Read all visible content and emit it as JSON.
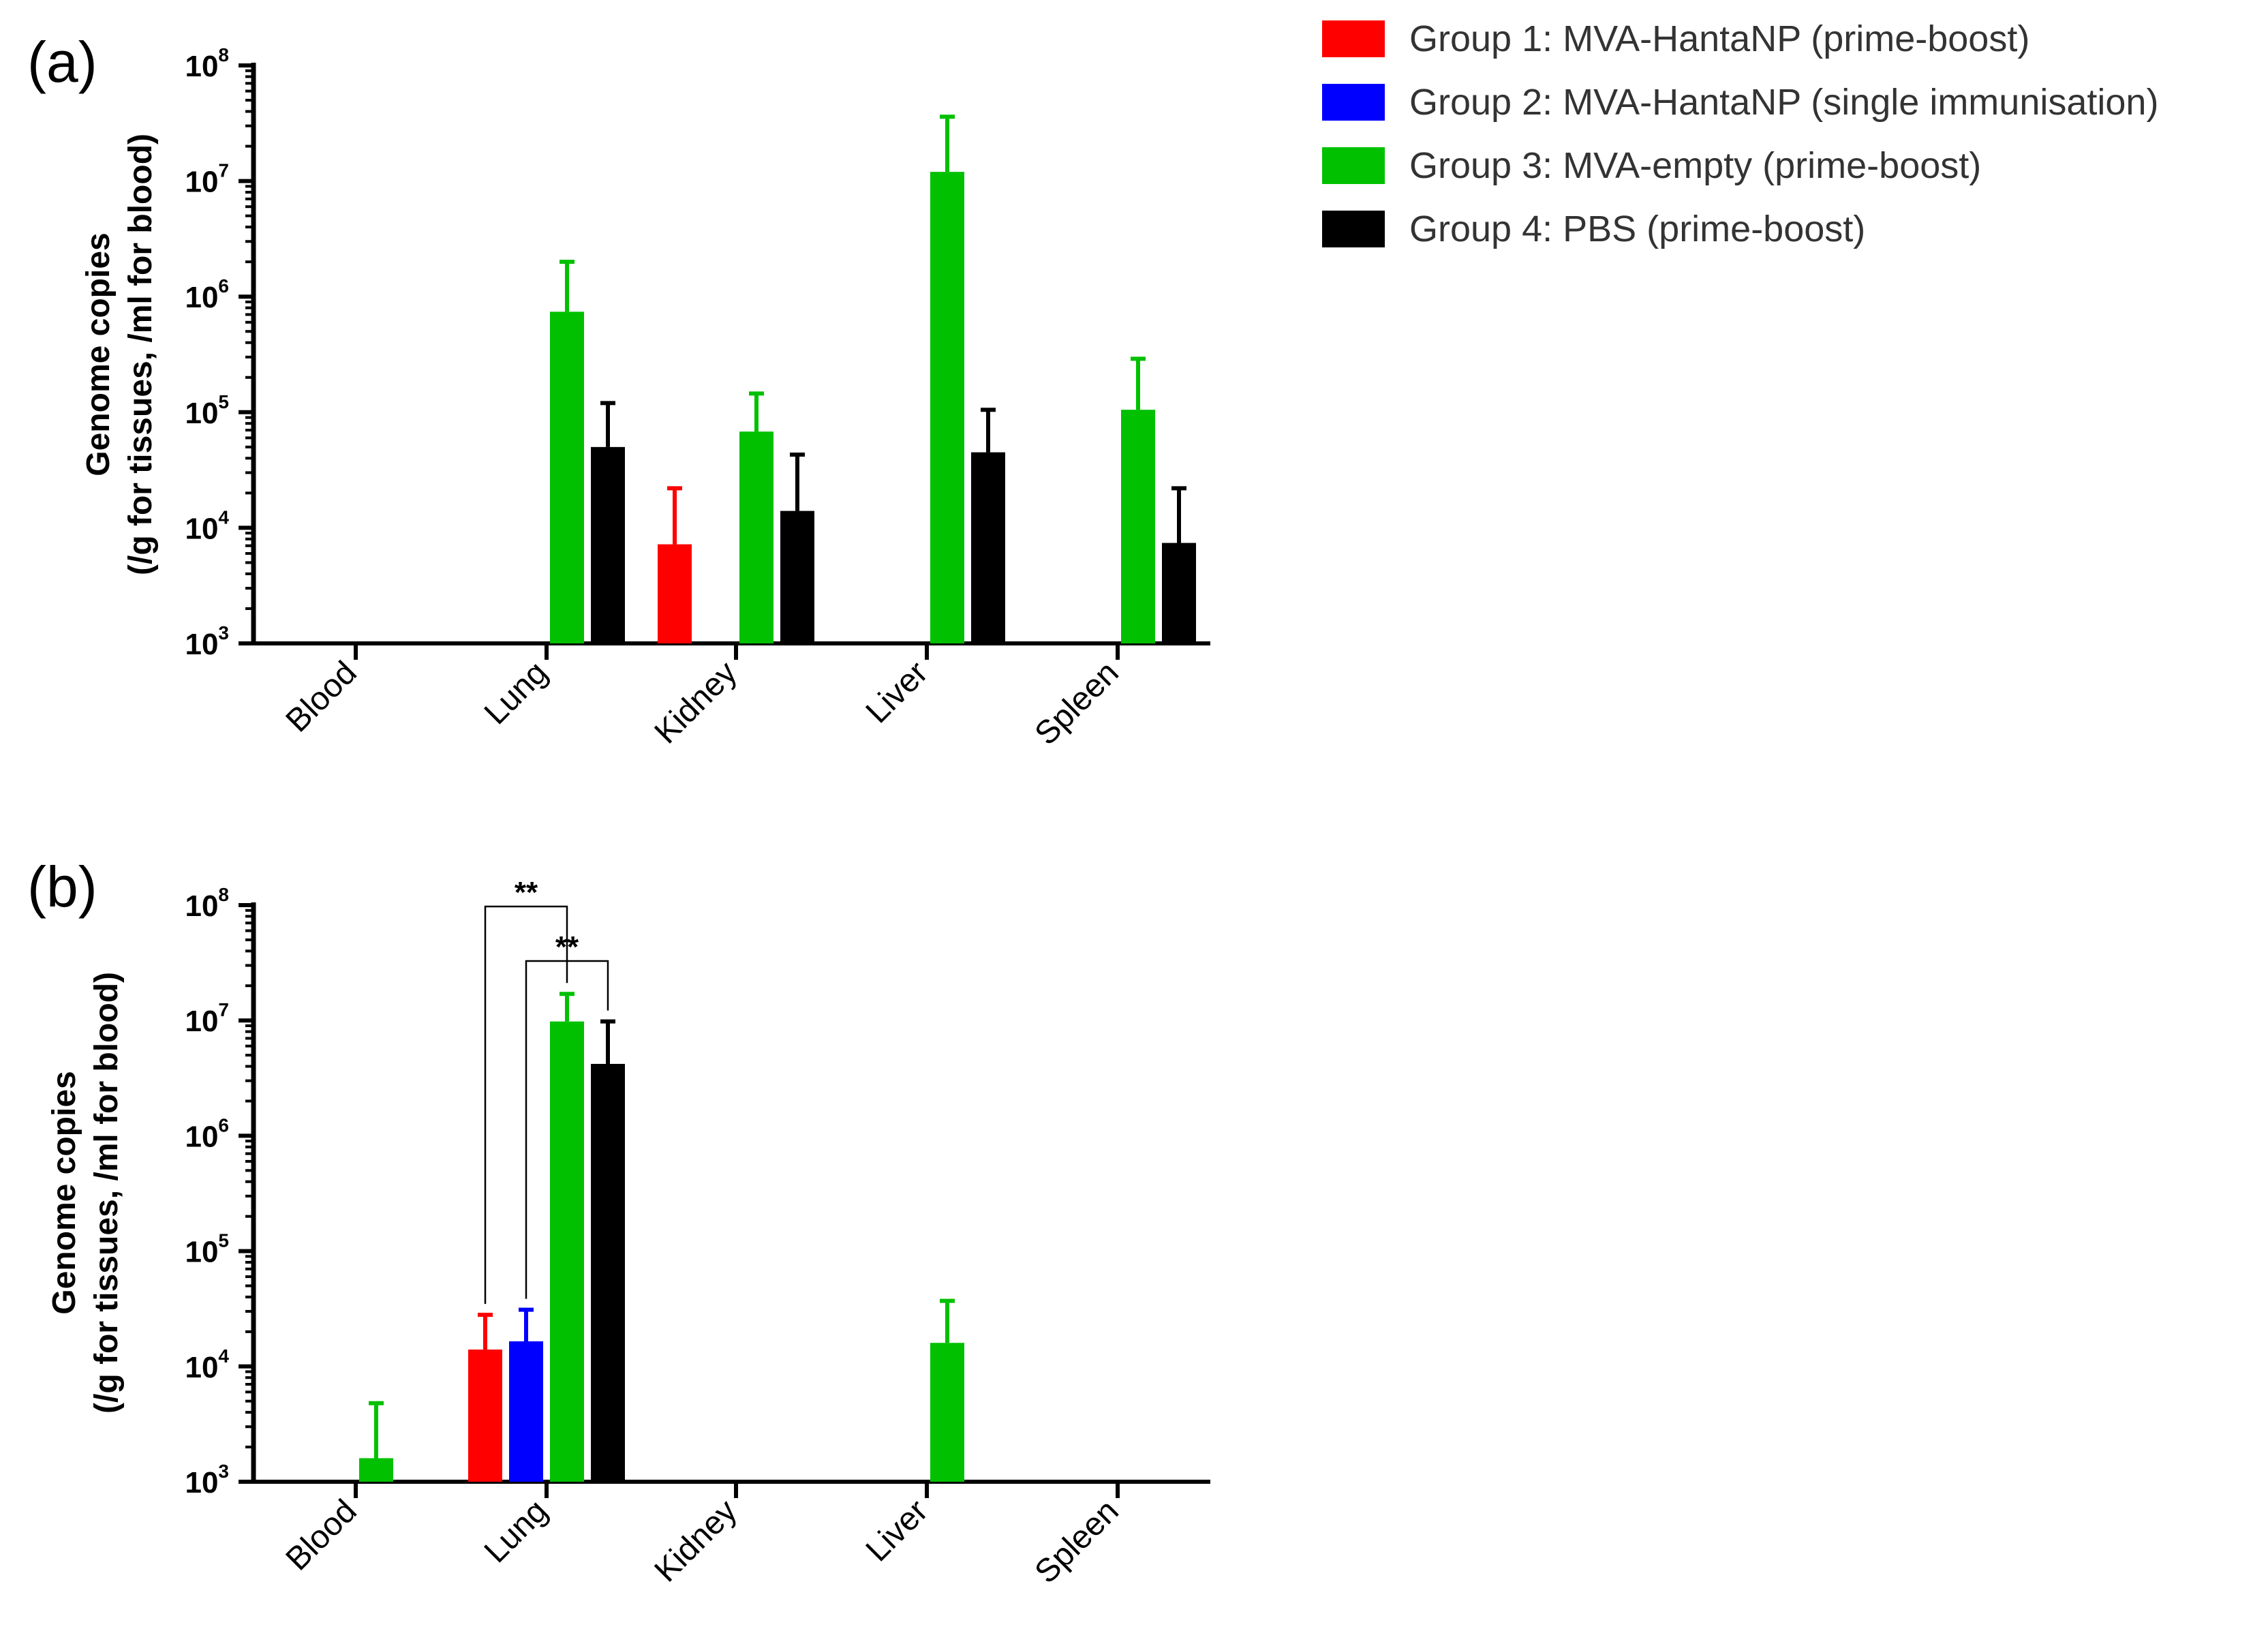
{
  "legend": [
    {
      "label": "Group 1: MVA-HantaNP (prime-boost)",
      "color": "#ff0000"
    },
    {
      "label": "Group 2: MVA-HantaNP (single immunisation)",
      "color": "#0000ff"
    },
    {
      "label": "Group 3: MVA-empty (prime-boost)",
      "color": "#00c000"
    },
    {
      "label": "Group 4: PBS (prime-boost)",
      "color": "#000000"
    }
  ],
  "chart_data": [
    {
      "panel": "(a)",
      "type": "bar",
      "yscale": "log",
      "ylim": [
        1000,
        100000000
      ],
      "ylabel_line1": "Genome copies",
      "ylabel_line2": "(/g for tissues, /ml for blood)",
      "yticks": [
        {
          "base": "10",
          "exp": "3",
          "value": 1000
        },
        {
          "base": "10",
          "exp": "4",
          "value": 10000
        },
        {
          "base": "10",
          "exp": "5",
          "value": 100000
        },
        {
          "base": "10",
          "exp": "6",
          "value": 1000000
        },
        {
          "base": "10",
          "exp": "7",
          "value": 10000000
        },
        {
          "base": "10",
          "exp": "8",
          "value": 100000000
        }
      ],
      "categories": [
        "Blood",
        "Lung",
        "Kidney",
        "Liver",
        "Spleen"
      ],
      "series": [
        {
          "name": "Group 1: MVA-HantaNP (prime-boost)",
          "color": "#ff0000",
          "values": [
            null,
            null,
            7200,
            null,
            null
          ],
          "errors": [
            null,
            null,
            22000,
            null,
            null
          ]
        },
        {
          "name": "Group 2: MVA-HantaNP (single immunisation)",
          "color": "#0000ff",
          "values": [
            null,
            null,
            null,
            null,
            null
          ],
          "errors": [
            null,
            null,
            null,
            null,
            null
          ]
        },
        {
          "name": "Group 3: MVA-empty (prime-boost)",
          "color": "#00c000",
          "values": [
            null,
            740000,
            68000,
            12000000,
            105000
          ],
          "errors": [
            null,
            2000000,
            145000,
            36000000,
            290000
          ]
        },
        {
          "name": "Group 4: PBS (prime-boost)",
          "color": "#000000",
          "values": [
            null,
            50000,
            14000,
            45000,
            7400
          ],
          "errors": [
            null,
            120000,
            43000,
            105000,
            22000
          ]
        }
      ],
      "significance": []
    },
    {
      "panel": "(b)",
      "type": "bar",
      "yscale": "log",
      "ylim": [
        1000,
        100000000
      ],
      "ylabel_line1": "Genome copies",
      "ylabel_line2": "(/g for tissues, /ml for blood)",
      "yticks": [
        {
          "base": "10",
          "exp": "3",
          "value": 1000
        },
        {
          "base": "10",
          "exp": "4",
          "value": 10000
        },
        {
          "base": "10",
          "exp": "5",
          "value": 100000
        },
        {
          "base": "10",
          "exp": "6",
          "value": 1000000
        },
        {
          "base": "10",
          "exp": "7",
          "value": 10000000
        },
        {
          "base": "10",
          "exp": "8",
          "value": 100000000
        }
      ],
      "categories": [
        "Blood",
        "Lung",
        "Kidney",
        "Liver",
        "Spleen"
      ],
      "series": [
        {
          "name": "Group 1: MVA-HantaNP (prime-boost)",
          "color": "#ff0000",
          "values": [
            null,
            14000,
            null,
            null,
            null
          ],
          "errors": [
            null,
            28000,
            null,
            null,
            null
          ]
        },
        {
          "name": "Group 2: MVA-HantaNP (single immunisation)",
          "color": "#0000ff",
          "values": [
            null,
            16500,
            null,
            null,
            null
          ],
          "errors": [
            null,
            31000,
            null,
            null,
            null
          ]
        },
        {
          "name": "Group 3: MVA-empty (prime-boost)",
          "color": "#00c000",
          "values": [
            1600,
            9800000,
            null,
            16000,
            null
          ],
          "errors": [
            4800,
            17000000,
            null,
            37000,
            null
          ]
        },
        {
          "name": "Group 4: PBS (prime-boost)",
          "color": "#000000",
          "values": [
            null,
            4200000,
            null,
            null,
            null
          ],
          "errors": [
            null,
            9800000,
            null,
            null,
            null
          ]
        }
      ],
      "significance": [
        {
          "label": "**",
          "category": "Lung",
          "from_series": 0,
          "to_series": 2
        },
        {
          "label": "**",
          "category": "Lung",
          "from_series": 1,
          "to_series": 3
        }
      ]
    }
  ]
}
